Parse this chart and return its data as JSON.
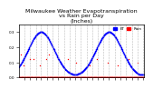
{
  "title": "Milwaukee Weather Evapotranspiration\nvs Rain per Day\n(Inches)",
  "title_fontsize": 4.5,
  "background_color": "#ffffff",
  "et_color": "#0000ff",
  "rain_color": "#ff0000",
  "marker": ".",
  "markersize": 2.0,
  "grid_color": "#aaaaaa",
  "grid_style": "--",
  "grid_positions": [
    31,
    62,
    92,
    120,
    151,
    181,
    212,
    243,
    273,
    304,
    334,
    365,
    396,
    424,
    455,
    485,
    516,
    547,
    577,
    608,
    638,
    669
  ],
  "xlim": [
    0,
    673
  ],
  "ylim": [
    0,
    0.35
  ],
  "tick_label_fontsize": 3.0,
  "legend_labels": [
    "ET",
    "Rain"
  ],
  "legend_colors": [
    "#0000ff",
    "#ff0000"
  ],
  "n_points": 674
}
